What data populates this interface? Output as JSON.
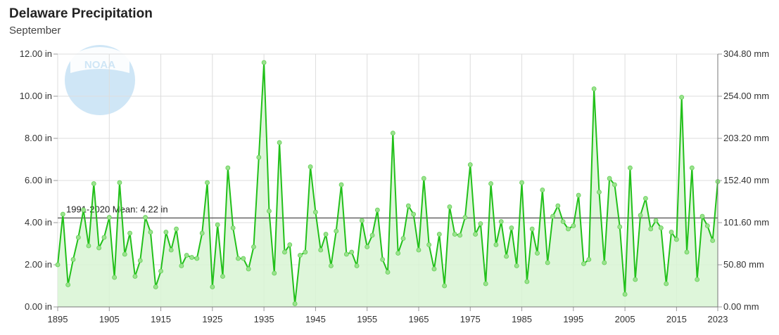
{
  "header": {
    "title": "Delaware Precipitation",
    "subtitle": "September"
  },
  "logo": {
    "text": "NOAA"
  },
  "colors": {
    "line": "#22c01a",
    "fill": "#d8f5d4",
    "point": "#9be28e",
    "mean_line": "#666666",
    "grid": "#dddddd"
  },
  "chart_data": {
    "type": "area",
    "title": "Delaware Precipitation",
    "subtitle": "September",
    "xlabel": "",
    "ylabel": "",
    "xlim": [
      1895,
      2023
    ],
    "ylim": [
      0,
      12
    ],
    "y_ticks": [
      "0.00 in",
      "2.00 in",
      "4.00 in",
      "6.00 in",
      "8.00 in",
      "10.00 in",
      "12.00 in"
    ],
    "y2_ticks": [
      "0.00 mm",
      "50.80 mm",
      "101.60 mm",
      "152.40 mm",
      "203.20 mm",
      "254.00 mm",
      "304.80 mm"
    ],
    "x_ticks": [
      "1895",
      "1905",
      "1915",
      "1925",
      "1935",
      "1945",
      "1955",
      "1965",
      "1975",
      "1985",
      "1995",
      "2005",
      "2015",
      "2023"
    ],
    "grid": true,
    "mean": {
      "label": "1991-2020 Mean: 4.22 in",
      "value": 4.22
    },
    "series": [
      {
        "x_start": 1895,
        "values": [
          2.0,
          4.4,
          1.05,
          2.25,
          3.3,
          4.6,
          2.9,
          5.85,
          2.8,
          3.3,
          4.25,
          1.4,
          5.9,
          2.5,
          3.5,
          1.45,
          2.2,
          4.25,
          3.55,
          0.95,
          1.7,
          3.55,
          2.7,
          3.7,
          1.95,
          2.45,
          2.35,
          2.3,
          3.5,
          5.9,
          0.95,
          3.9,
          1.45,
          6.6,
          3.75,
          2.3,
          2.3,
          1.8,
          2.85,
          7.1,
          11.6,
          4.55,
          1.6,
          7.8,
          2.6,
          2.95,
          0.15,
          2.45,
          2.6,
          6.65,
          4.5,
          2.7,
          3.45,
          1.95,
          3.6,
          5.8,
          2.5,
          2.6,
          1.95,
          4.1,
          2.85,
          3.4,
          4.6,
          2.25,
          1.65,
          8.25,
          2.55,
          3.25,
          4.8,
          4.4,
          2.7,
          6.1,
          2.95,
          1.8,
          3.45,
          1.0,
          4.75,
          3.45,
          3.4,
          4.25,
          6.75,
          3.45,
          3.95,
          1.1,
          5.85,
          2.95,
          4.05,
          2.4,
          3.75,
          1.95,
          5.9,
          1.2,
          3.7,
          2.55,
          5.55,
          2.1,
          4.3,
          4.8,
          4.05,
          3.7,
          3.85,
          5.3,
          2.05,
          2.25,
          10.35,
          5.45,
          2.1,
          6.1,
          5.8,
          3.8,
          0.6,
          6.6,
          1.3,
          4.35,
          5.15,
          3.7,
          4.1,
          3.75,
          1.1,
          3.55,
          3.2,
          9.95,
          2.6,
          6.6,
          1.3,
          4.3,
          3.85,
          3.15,
          5.95
        ]
      }
    ]
  }
}
